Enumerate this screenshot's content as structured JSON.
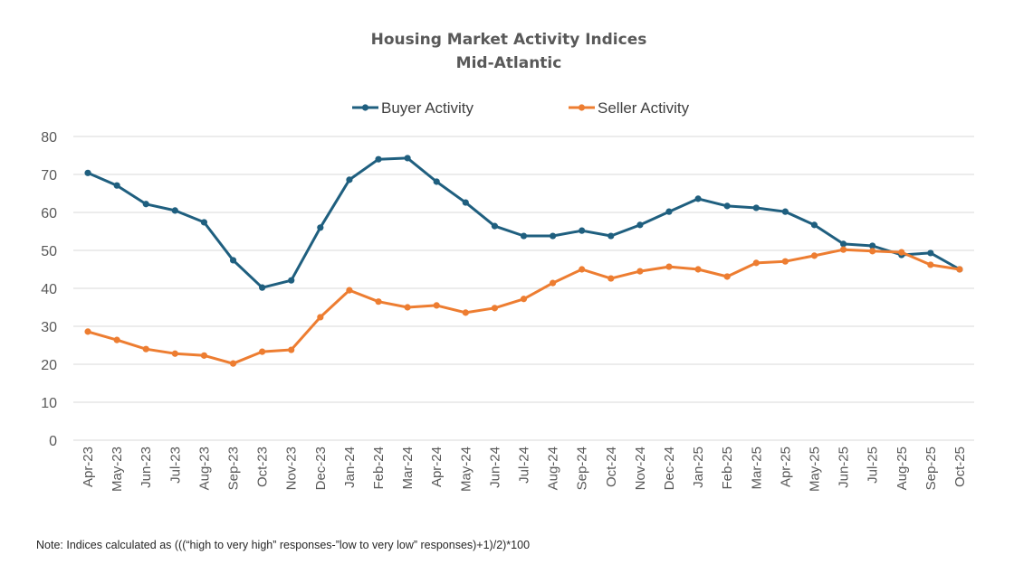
{
  "chart_data": {
    "type": "line",
    "title": "Housing Market Activity Indices",
    "subtitle": "Mid-Atlantic",
    "xlabel": "",
    "ylabel": "",
    "ylim": [
      0,
      80
    ],
    "yticks": [
      0,
      10,
      20,
      30,
      40,
      50,
      60,
      70,
      80
    ],
    "grid": true,
    "legend_position": "top-center",
    "categories": [
      "Apr-23",
      "May-23",
      "Jun-23",
      "Jul-23",
      "Aug-23",
      "Sep-23",
      "Oct-23",
      "Nov-23",
      "Dec-23",
      "Jan-24",
      "Feb-24",
      "Mar-24",
      "Apr-24",
      "May-24",
      "Jun-24",
      "Jul-24",
      "Aug-24",
      "Sep-24",
      "Oct-24",
      "Nov-24",
      "Dec-24",
      "Jan-25",
      "Feb-25",
      "Mar-25",
      "Apr-25",
      "May-25",
      "Jun-25",
      "Jul-25",
      "Aug-25",
      "Sep-25",
      "Oct-25"
    ],
    "series": [
      {
        "name": "Buyer Activity",
        "color": "#1f5f7f",
        "values": [
          70.4,
          67.1,
          62.2,
          60.5,
          57.4,
          47.4,
          40.2,
          42.1,
          56.0,
          68.6,
          74.0,
          74.3,
          68.1,
          62.6,
          56.4,
          53.8,
          53.8,
          55.2,
          53.8,
          56.7,
          60.2,
          63.6,
          61.7,
          61.2,
          60.2,
          56.7,
          51.7,
          51.2,
          48.8,
          49.3,
          45.0
        ]
      },
      {
        "name": "Seller Activity",
        "color": "#ed7d31",
        "values": [
          28.6,
          26.4,
          24.0,
          22.8,
          22.3,
          20.2,
          23.3,
          23.8,
          32.4,
          39.5,
          36.5,
          35.0,
          35.5,
          33.6,
          34.8,
          37.2,
          41.4,
          45.0,
          42.6,
          44.5,
          45.7,
          45.0,
          43.1,
          46.7,
          47.1,
          48.6,
          50.2,
          49.8,
          49.5,
          46.2,
          45.0
        ]
      }
    ]
  },
  "note": "Note: Indices calculated as (((“high to very high” responses-”low to very low” responses)+1)/2)*100"
}
